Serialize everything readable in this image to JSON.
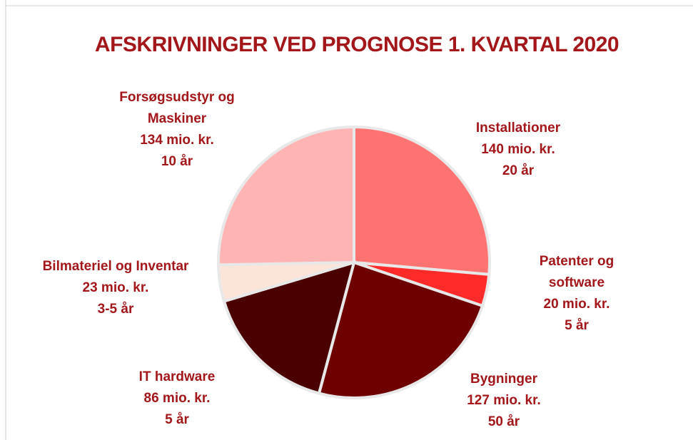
{
  "chart_data": {
    "type": "pie",
    "title": "AFSKRIVNINGER VED PROGNOSE 1. KVARTAL 2020",
    "categories": [
      "Installationer",
      "Patenter og software",
      "Bygninger",
      "IT hardware",
      "Bilmateriel og Inventar",
      "Forsøgsudstyr og Maskiner"
    ],
    "values": [
      140,
      20,
      127,
      86,
      23,
      134
    ],
    "value_labels": [
      "140 mio. kr.",
      "20 mio. kr.",
      "127 mio. kr.",
      "86 mio. kr.",
      "23 mio. kr.",
      "134 mio. kr."
    ],
    "durations": [
      "20 år",
      "5 år",
      "50 år",
      "5 år",
      "3-5 år",
      "10 år"
    ],
    "colors": [
      "#ff7272",
      "#ff2b2b",
      "#6e0000",
      "#4a0000",
      "#fde4d9",
      "#ffb4b4"
    ]
  }
}
